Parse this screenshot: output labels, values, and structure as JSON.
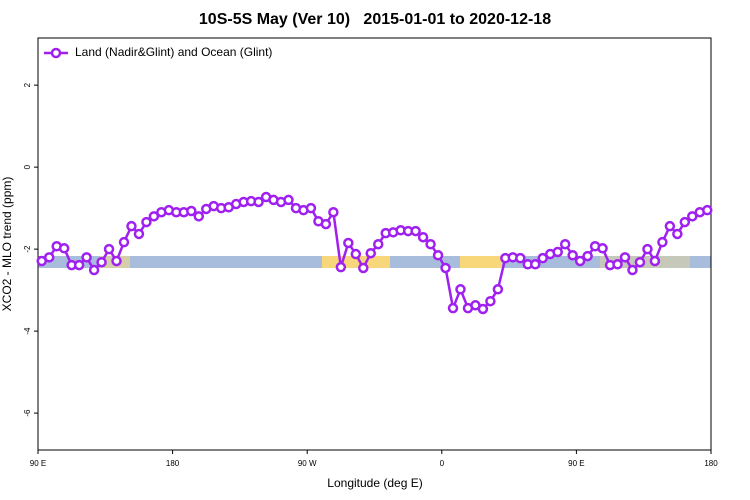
{
  "chart_data": {
    "type": "line",
    "title": "10S-5S May (Ver 10)   2015-01-01 to 2020-12-18",
    "xlabel": "Longitude (deg E)",
    "ylabel": "XCO2 - MLO trend (ppm)",
    "xlim": [
      90,
      540
    ],
    "xticks": [
      {
        "value": 90,
        "label": "90 E"
      },
      {
        "value": 180,
        "label": "180"
      },
      {
        "value": 270,
        "label": "90 W"
      },
      {
        "value": 360,
        "label": "0"
      },
      {
        "value": 450,
        "label": "90 E"
      },
      {
        "value": 540,
        "label": "180"
      }
    ],
    "ylim": [
      -6.9,
      3.15
    ],
    "yticks": [
      -6,
      -4,
      -2,
      0,
      2
    ],
    "legend": "top-left",
    "series": [
      {
        "name": "Land (Nadir&Glint) and Ocean (Glint)",
        "color": "#a020f0",
        "x": [
          92.5,
          97.5,
          102.5,
          107.5,
          112.5,
          117.5,
          122.5,
          127.5,
          132.5,
          137.5,
          142.5,
          147.5,
          152.5,
          157.5,
          162.5,
          167.5,
          172.5,
          177.5,
          182.5,
          187.5,
          192.5,
          197.5,
          202.5,
          207.5,
          212.5,
          217.5,
          222.5,
          227.5,
          232.5,
          237.5,
          242.5,
          247.5,
          252.5,
          257.5,
          262.5,
          267.5,
          272.5,
          277.5,
          282.5,
          287.5,
          292.5,
          297.5,
          302.5,
          307.5,
          312.5,
          317.5,
          322.5,
          327.5,
          332.5,
          337.5,
          342.5,
          347.5,
          352.5,
          357.5,
          362.5,
          367.5,
          372.5,
          377.5,
          382.5,
          387.5,
          392.5,
          397.5,
          402.5,
          407.5,
          412.5,
          417.5,
          422.5,
          427.5,
          432.5,
          437.5,
          442.5,
          447.5,
          452.5,
          457.5,
          462.5,
          467.5,
          472.5,
          477.5,
          482.5,
          487.5,
          492.5,
          497.5,
          502.5,
          507.5,
          512.5,
          517.5,
          522.5,
          527.5,
          532.5,
          537.5
        ],
        "values": [
          -2.29,
          -2.2,
          -1.93,
          -1.98,
          -2.39,
          -2.39,
          -2.2,
          -2.51,
          -2.32,
          -2.0,
          -2.29,
          -1.83,
          -1.44,
          -1.63,
          -1.34,
          -1.2,
          -1.1,
          -1.05,
          -1.1,
          -1.1,
          -1.07,
          -1.2,
          -1.02,
          -0.95,
          -1.0,
          -0.98,
          -0.9,
          -0.85,
          -0.83,
          -0.85,
          -0.73,
          -0.8,
          -0.85,
          -0.8,
          -1.0,
          -1.05,
          -1.0,
          -1.32,
          -1.39,
          -1.1,
          -2.44,
          -1.85,
          -2.12,
          -2.46,
          -2.1,
          -1.88,
          -1.61,
          -1.59,
          -1.54,
          -1.56,
          -1.56,
          -1.71,
          -1.88,
          -2.15,
          -2.46,
          -3.44,
          -2.98,
          -3.44,
          -3.37,
          -3.46,
          -3.27,
          -2.98,
          -2.22,
          -2.2,
          -2.22,
          -2.37,
          -2.37,
          -2.22,
          -2.12,
          -2.07,
          -1.88,
          -2.15,
          -2.29,
          -2.17,
          -1.93,
          -1.98,
          -2.39,
          -2.37,
          -2.2,
          -2.51,
          -2.32,
          -2.0,
          -2.29,
          -1.83,
          -1.44,
          -1.63,
          -1.34,
          -1.2,
          -1.1,
          -1.05
        ]
      }
    ]
  }
}
